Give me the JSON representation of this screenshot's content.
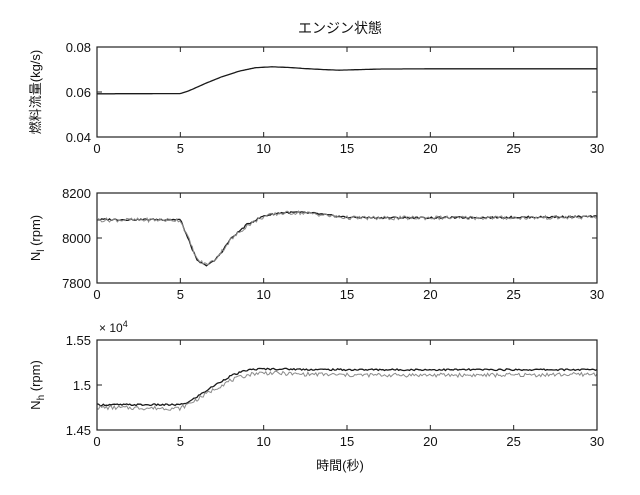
{
  "figure_title": "エンジン状態",
  "xlabel": "時間(秒)",
  "chart_data": [
    {
      "type": "line",
      "ylabel": "燃料流量(kg/s)",
      "xlim": [
        0,
        30
      ],
      "ylim": [
        0.04,
        0.08
      ],
      "xticks": [
        "0",
        "5",
        "10",
        "15",
        "20",
        "25",
        "30"
      ],
      "yticks": [
        "0.04",
        "0.06",
        "0.08"
      ],
      "exponent_label": "",
      "series": [
        {
          "x": [
            0,
            5,
            5.5,
            6.5,
            7.5,
            8.5,
            9.5,
            10.5,
            11.5,
            12.5,
            13.5,
            14.5,
            15.5,
            17,
            20,
            25,
            30
          ],
          "y": [
            0.0592,
            0.0593,
            0.0605,
            0.0638,
            0.0668,
            0.0692,
            0.0708,
            0.0712,
            0.0709,
            0.0704,
            0.07,
            0.0697,
            0.0699,
            0.0702,
            0.0703,
            0.0703,
            0.0703
          ]
        }
      ]
    },
    {
      "type": "line",
      "ylabel": "N_l (rpm)",
      "xlim": [
        0,
        30
      ],
      "ylim": [
        7800,
        8200
      ],
      "xticks": [
        "0",
        "5",
        "10",
        "15",
        "20",
        "25",
        "30"
      ],
      "yticks": [
        "7800",
        "8000",
        "8200"
      ],
      "exponent_label": "",
      "series": [
        {
          "x": [
            0,
            5,
            5.5,
            6,
            6.5,
            7,
            7.5,
            8,
            9,
            10,
            11,
            12,
            13,
            14,
            15,
            17,
            20,
            25,
            30
          ],
          "y": [
            8082,
            8082,
            7990,
            7900,
            7878,
            7895,
            7940,
            7995,
            8060,
            8098,
            8112,
            8114,
            8110,
            8100,
            8092,
            8090,
            8090,
            8092,
            8095
          ]
        },
        {
          "x": [
            0,
            5,
            5.5,
            6,
            6.5,
            7,
            7.5,
            8,
            9,
            10,
            11,
            12,
            13,
            14,
            15,
            17,
            20,
            25,
            30
          ],
          "y": [
            8080,
            8080,
            7995,
            7905,
            7882,
            7898,
            7942,
            7990,
            8055,
            8095,
            8110,
            8113,
            8108,
            8098,
            8090,
            8088,
            8090,
            8090,
            8092
          ]
        }
      ]
    },
    {
      "type": "line",
      "ylabel": "N_h (rpm)",
      "xlim": [
        0,
        30
      ],
      "ylim": [
        1.45,
        1.55
      ],
      "xticks": [
        "0",
        "5",
        "10",
        "15",
        "20",
        "25",
        "30"
      ],
      "yticks": [
        "1.45",
        "1.5",
        "1.55"
      ],
      "exponent_label": "× 10^4",
      "series": [
        {
          "x": [
            0,
            5,
            5.5,
            6,
            7,
            8,
            9,
            9.5,
            10,
            11,
            12,
            13,
            15,
            20,
            25,
            30
          ],
          "y": [
            1.478,
            1.478,
            1.481,
            1.487,
            1.499,
            1.51,
            1.5165,
            1.5175,
            1.5178,
            1.5178,
            1.5175,
            1.5172,
            1.517,
            1.517,
            1.517,
            1.517
          ]
        },
        {
          "x": [
            0,
            5,
            5.5,
            6,
            7,
            8,
            9,
            9.5,
            10,
            11,
            12,
            13,
            15,
            20,
            25,
            30
          ],
          "y": [
            1.475,
            1.474,
            1.479,
            1.484,
            1.495,
            1.505,
            1.511,
            1.513,
            1.5135,
            1.513,
            1.512,
            1.512,
            1.511,
            1.511,
            1.511,
            1.512
          ]
        }
      ]
    }
  ]
}
